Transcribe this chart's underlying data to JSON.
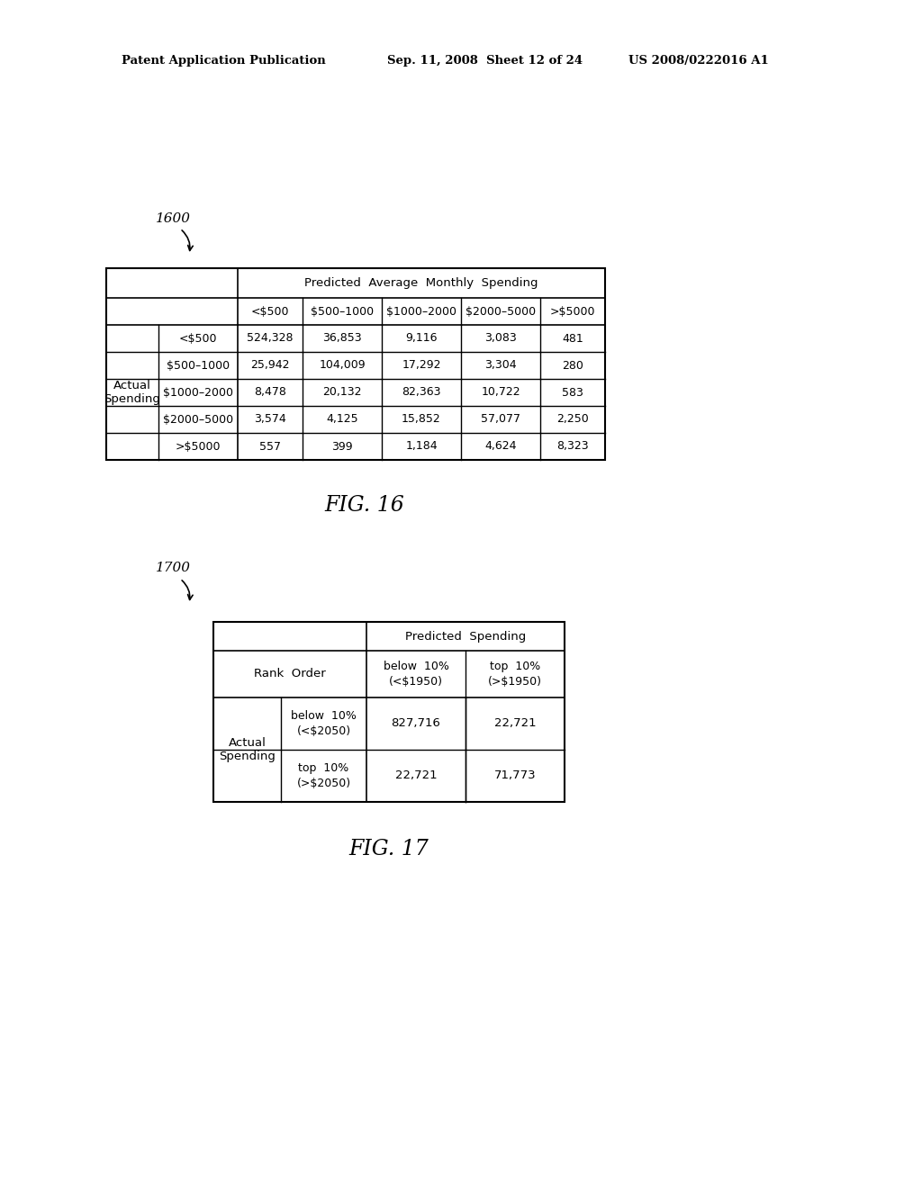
{
  "header_left": "Patent Application Publication",
  "header_mid": "Sep. 11, 2008  Sheet 12 of 24",
  "header_right": "US 2008/0222016 A1",
  "fig16_label": "1600",
  "fig17_label": "1700",
  "fig16_caption": "FIG. 16",
  "fig17_caption": "FIG. 17",
  "table1": {
    "title": "Predicted  Average  Monthly  Spending",
    "col_headers": [
      "<$500",
      "$500–1000",
      "$1000–2000",
      "$2000–5000",
      ">$5000"
    ],
    "row_headers": [
      "<$500",
      "$500–1000",
      "$1000–2000",
      "$2000–5000",
      ">$5000"
    ],
    "row_label": "Actual\nSpending",
    "data": [
      [
        "524,328",
        "36,853",
        "9,116",
        "3,083",
        "481"
      ],
      [
        "25,942",
        "104,009",
        "17,292",
        "3,304",
        "280"
      ],
      [
        "8,478",
        "20,132",
        "82,363",
        "10,722",
        "583"
      ],
      [
        "3,574",
        "4,125",
        "15,852",
        "57,077",
        "2,250"
      ],
      [
        "557",
        "399",
        "1,184",
        "4,624",
        "8,323"
      ]
    ]
  },
  "table2": {
    "title": "Predicted  Spending",
    "col_headers": [
      "below  10%\n(<$1950)",
      "top  10%\n(>$1950)"
    ],
    "row_headers": [
      "below  10%\n(<$2050)",
      "top  10%\n(>$2050)"
    ],
    "row_label": "Actual\nSpending",
    "rank_order_label": "Rank  Order",
    "data": [
      [
        "827,716",
        "22,721"
      ],
      [
        "22,721",
        "71,773"
      ]
    ]
  },
  "background_color": "#ffffff",
  "text_color": "#000000"
}
